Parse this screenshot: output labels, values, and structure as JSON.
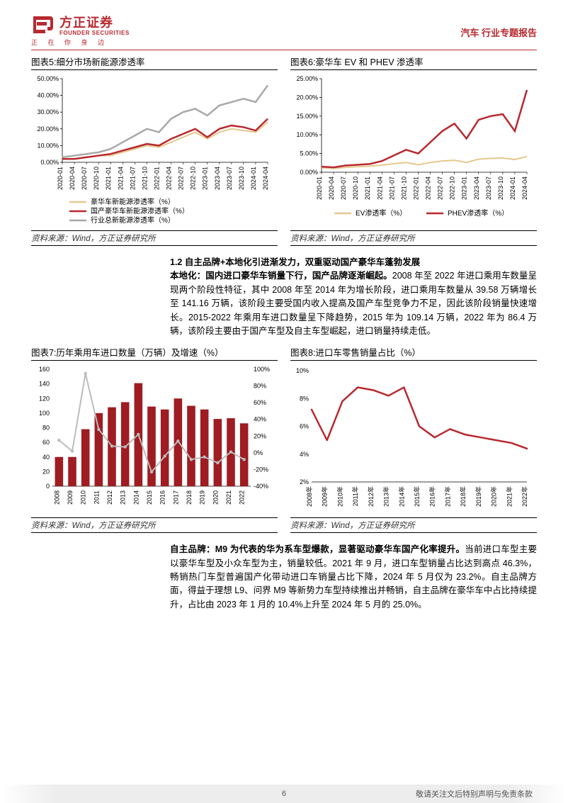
{
  "header": {
    "brand_cn": "方正证券",
    "brand_en": "FOUNDER SECURITIES",
    "brand_tagline": "正 在 你 身 边",
    "doc_label": "汽车 行业专题报告",
    "logo_color": "#b8292f"
  },
  "chart5": {
    "title": "图表5:细分市场新能源渗透率",
    "source": "资料来源：Wind，方正证券研究所",
    "type": "line",
    "x_labels": [
      "2020-01",
      "2020-04",
      "2020-07",
      "2020-10",
      "2021-01",
      "2021-04",
      "2021-07",
      "2021-10",
      "2022-01",
      "2022-04",
      "2022-07",
      "2022-10",
      "2023-01",
      "2023-04",
      "2023-07",
      "2023-10",
      "2024-01",
      "2024-04"
    ],
    "ylabel_format": "pct",
    "ylim": [
      0,
      50
    ],
    "ytick_step": 10,
    "background_color": "#ffffff",
    "grid_color": "#ffffff",
    "axis_color": "#000000",
    "tick_fontsize": 9,
    "label_rotate": -90,
    "series": [
      {
        "name": "豪华车新能源渗透率（%）",
        "color": "#e6c88f",
        "width": 2,
        "values": [
          2,
          2,
          3,
          4,
          4,
          6,
          8,
          10,
          9,
          12,
          15,
          18,
          14,
          18,
          20,
          19,
          18,
          24
        ]
      },
      {
        "name": "国产豪华车新能源渗透率（%）",
        "color": "#b8292f",
        "width": 2.5,
        "values": [
          2,
          2,
          3,
          4,
          5,
          7,
          9,
          11,
          10,
          14,
          17,
          20,
          15,
          20,
          22,
          21,
          19,
          26
        ]
      },
      {
        "name": "行业总新能源渗透率（%）",
        "color": "#a8a8a8",
        "width": 2.5,
        "values": [
          3,
          4,
          5,
          6,
          8,
          12,
          16,
          20,
          18,
          26,
          30,
          32,
          28,
          34,
          36,
          38,
          36,
          46
        ]
      }
    ]
  },
  "chart6": {
    "title": "图表6:豪华车 EV 和 PHEV 渗透率",
    "source": "资料来源：Wind，方正证券研究所",
    "type": "line",
    "x_labels": [
      "2020-01",
      "2020-04",
      "2020-07",
      "2020-10",
      "2021-01",
      "2021-04",
      "2021-07",
      "2021-10",
      "2022-01",
      "2022-04",
      "2022-07",
      "2022-10",
      "2023-01",
      "2023-04",
      "2023-07",
      "2023-10",
      "2024-01",
      "2024-04"
    ],
    "ylim": [
      0,
      25
    ],
    "ytick_step": 5,
    "background_color": "#ffffff",
    "axis_color": "#000000",
    "tick_fontsize": 9,
    "label_rotate": -90,
    "series": [
      {
        "name": "EV渗透率（%）",
        "color": "#e6c88f",
        "width": 2,
        "values": [
          1.2,
          1.0,
          1.3,
          1.5,
          1.6,
          1.9,
          2.3,
          2.6,
          2.0,
          2.6,
          3.0,
          3.2,
          2.6,
          3.5,
          3.7,
          3.8,
          3.4,
          4.2
        ]
      },
      {
        "name": "PHEV渗透率（%）",
        "color": "#b8292f",
        "width": 2.5,
        "values": [
          1.5,
          1.3,
          1.8,
          2.0,
          2.2,
          3.0,
          4.5,
          6.0,
          5.0,
          8.0,
          11.0,
          13.0,
          9.0,
          14.0,
          15.0,
          15.5,
          11.0,
          22.0
        ]
      }
    ]
  },
  "section12": {
    "title": "1.2 自主品牌+本地化引进渐发力，双重驱动国产豪华车蓬勃发展",
    "lead": "本地化：国内进口豪华车销量下行，国产品牌逐渐崛起。",
    "body": "2008 年至 2022 年进口乘用车数量呈现两个阶段性特征，其中 2008 年至 2014 年为增长阶段，进口乘用车数量从 39.58 万辆增长至 141.16 万辆，该阶段主要受国内收入提高及国产车型竞争力不足，因此该阶段销量快速增长。2015-2022 年乘用车进口数量呈下降趋势，2015 年为 109.14 万辆，2022 年为 86.4 万辆，该阶段主要由于国产车型及自主车型崛起，进口销量持续走低。"
  },
  "chart7": {
    "title": "图表7:历年乘用车进口数量（万辆）及增速（%）",
    "source": "资料来源：Wind，方正证券研究所",
    "type": "bar+line",
    "x_labels": [
      "2008",
      "2009",
      "2010",
      "2011",
      "2012",
      "2013",
      "2014",
      "2015",
      "2016",
      "2017",
      "2018",
      "2019",
      "2020",
      "2021",
      "2022"
    ],
    "y1_lim": [
      0,
      160
    ],
    "y1_tick_step": 20,
    "y2_lim": [
      -40,
      100
    ],
    "y2_tick_step": 20,
    "bar_color": "#9e1c22",
    "line_color": "#bcbcbc",
    "bar_width": 0.62,
    "axis_color": "#000000",
    "tick_fontsize": 9,
    "label_rotate": -90,
    "bars": [
      40,
      40,
      78,
      100,
      108,
      115,
      141,
      109,
      105,
      120,
      110,
      105,
      92,
      93,
      86
    ],
    "line": [
      15,
      2,
      95,
      28,
      8,
      7,
      22,
      -23,
      -4,
      14,
      -8,
      -5,
      -12,
      1,
      -8
    ]
  },
  "chart8": {
    "title": "图表8:进口车零售销量占比（%）",
    "source": "资料来源：Wind，方正证券研究所",
    "type": "line",
    "x_labels": [
      "2008年",
      "2009年",
      "2010年",
      "2011年",
      "2012年",
      "2013年",
      "2014年",
      "2015年",
      "2016年",
      "2017年",
      "2018年",
      "2019年",
      "2020年",
      "2021年",
      "2022年"
    ],
    "ylim": [
      2,
      10
    ],
    "yticks": [
      2,
      4,
      6,
      8,
      10
    ],
    "axis_color": "#000000",
    "tick_fontsize": 9,
    "label_rotate": -90,
    "series_color": "#b8292f",
    "series_width": 2.5,
    "values": [
      7.2,
      5.0,
      7.8,
      8.8,
      8.6,
      8.2,
      8.8,
      6.0,
      5.2,
      5.8,
      5.4,
      5.2,
      5.0,
      4.8,
      4.4
    ]
  },
  "section_brand": {
    "lead": "自主品牌：M9 为代表的华为系车型爆款，显著驱动豪华车国产化率提升。",
    "body": "当前进口车型主要以豪华车型及小众车型为主，销量较低。2021 年 9 月，进口车型销量占比达到高点 46.3%，畅销热门车型普遍国产化带动进口车销量占比下降，2024 年 5 月仅为 23.2%。自主品牌方面，得益于理想 L9、问界 M9 等新势力车型持续推出并畅销，自主品牌在豪华车中占比持续提升，占比由 2023 年 1 月的 10.4%上升至 2024 年 5 月的 25.0%。"
  },
  "footer": {
    "pagenum": "6",
    "disclaimer": "敬请关注文后特别声明与免责条款"
  }
}
